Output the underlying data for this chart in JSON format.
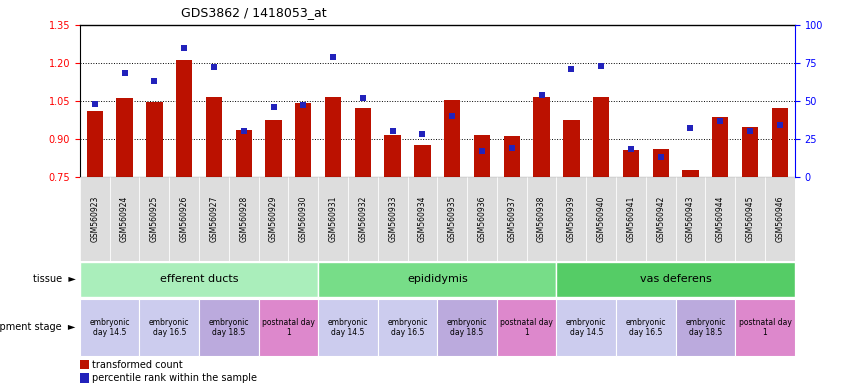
{
  "title": "GDS3862 / 1418053_at",
  "samples": [
    "GSM560923",
    "GSM560924",
    "GSM560925",
    "GSM560926",
    "GSM560927",
    "GSM560928",
    "GSM560929",
    "GSM560930",
    "GSM560931",
    "GSM560932",
    "GSM560933",
    "GSM560934",
    "GSM560935",
    "GSM560936",
    "GSM560937",
    "GSM560938",
    "GSM560939",
    "GSM560940",
    "GSM560941",
    "GSM560942",
    "GSM560943",
    "GSM560944",
    "GSM560945",
    "GSM560946"
  ],
  "transformed_count": [
    1.01,
    1.06,
    1.045,
    1.21,
    1.065,
    0.935,
    0.975,
    1.04,
    1.065,
    1.02,
    0.915,
    0.875,
    1.055,
    0.915,
    0.91,
    1.065,
    0.975,
    1.065,
    0.855,
    0.86,
    0.775,
    0.985,
    0.945,
    1.02
  ],
  "percentile_rank": [
    48,
    68,
    63,
    85,
    72,
    30,
    46,
    47,
    79,
    52,
    30,
    28,
    40,
    17,
    19,
    54,
    71,
    73,
    18,
    13,
    32,
    37,
    30,
    34
  ],
  "ylim_left": [
    0.75,
    1.35
  ],
  "ylim_right": [
    0,
    100
  ],
  "yticks_left": [
    0.75,
    0.9,
    1.05,
    1.2,
    1.35
  ],
  "yticks_right": [
    0,
    25,
    50,
    75,
    100
  ],
  "bar_color": "#BB1100",
  "marker_color": "#2222BB",
  "tissue_groups": [
    {
      "label": "efferent ducts",
      "start": 0,
      "end": 8,
      "color": "#AAEEBB"
    },
    {
      "label": "epididymis",
      "start": 8,
      "end": 16,
      "color": "#77DD88"
    },
    {
      "label": "vas deferens",
      "start": 16,
      "end": 24,
      "color": "#55CC66"
    }
  ],
  "dev_stage_colors": {
    "embryonic_light": "#CCCCEE",
    "embryonic_mid": "#BBAADD",
    "postnatal": "#DD88CC"
  },
  "dev_stages": [
    {
      "label": "embryonic\nday 14.5",
      "start": 0,
      "end": 2,
      "color": "#CCCCEE"
    },
    {
      "label": "embryonic\nday 16.5",
      "start": 2,
      "end": 4,
      "color": "#CCCCEE"
    },
    {
      "label": "embryonic\nday 18.5",
      "start": 4,
      "end": 6,
      "color": "#BBAADD"
    },
    {
      "label": "postnatal day\n1",
      "start": 6,
      "end": 8,
      "color": "#DD88CC"
    },
    {
      "label": "embryonic\nday 14.5",
      "start": 8,
      "end": 10,
      "color": "#CCCCEE"
    },
    {
      "label": "embryonic\nday 16.5",
      "start": 10,
      "end": 12,
      "color": "#CCCCEE"
    },
    {
      "label": "embryonic\nday 18.5",
      "start": 12,
      "end": 14,
      "color": "#BBAADD"
    },
    {
      "label": "postnatal day\n1",
      "start": 14,
      "end": 16,
      "color": "#DD88CC"
    },
    {
      "label": "embryonic\nday 14.5",
      "start": 16,
      "end": 18,
      "color": "#CCCCEE"
    },
    {
      "label": "embryonic\nday 16.5",
      "start": 18,
      "end": 20,
      "color": "#CCCCEE"
    },
    {
      "label": "embryonic\nday 18.5",
      "start": 20,
      "end": 22,
      "color": "#BBAADD"
    },
    {
      "label": "postnatal day\n1",
      "start": 22,
      "end": 24,
      "color": "#DD88CC"
    }
  ]
}
